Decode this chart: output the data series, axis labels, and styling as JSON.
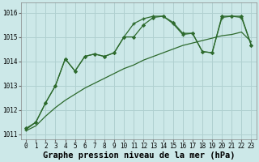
{
  "background_color": "#cce8e8",
  "grid_color": "#b0d0d0",
  "line_color": "#2d6a2d",
  "xlabel": "Graphe pression niveau de la mer (hPa)",
  "xlabel_fontsize": 7.5,
  "tick_fontsize": 5.5,
  "xlim": [
    -0.5,
    23.5
  ],
  "ylim": [
    1010.8,
    1016.4
  ],
  "yticks": [
    1011,
    1012,
    1013,
    1014,
    1015,
    1016
  ],
  "xticks": [
    0,
    1,
    2,
    3,
    4,
    5,
    6,
    7,
    8,
    9,
    10,
    11,
    12,
    13,
    14,
    15,
    16,
    17,
    18,
    19,
    20,
    21,
    22,
    23
  ],
  "line1_x": [
    0,
    1,
    2,
    3,
    4,
    5,
    6,
    7,
    8,
    9,
    10,
    11,
    12,
    13,
    14,
    15,
    16,
    17,
    18,
    19,
    20,
    21,
    22,
    23
  ],
  "line1_y": [
    1011.15,
    1011.35,
    1011.75,
    1012.1,
    1012.4,
    1012.65,
    1012.9,
    1013.1,
    1013.3,
    1013.5,
    1013.7,
    1013.85,
    1014.05,
    1014.2,
    1014.35,
    1014.5,
    1014.65,
    1014.75,
    1014.85,
    1014.95,
    1015.05,
    1015.1,
    1015.2,
    1014.8
  ],
  "line2_x": [
    0,
    1,
    2,
    3,
    4,
    5,
    6,
    7,
    8,
    9,
    10,
    11,
    12,
    13,
    14,
    15,
    16,
    17,
    18,
    19,
    20,
    21,
    22,
    23
  ],
  "line2_y": [
    1011.2,
    1011.5,
    1012.3,
    1013.0,
    1014.1,
    1013.6,
    1014.2,
    1014.3,
    1014.2,
    1014.35,
    1015.0,
    1015.55,
    1015.75,
    1015.85,
    1015.85,
    1015.55,
    1015.1,
    1015.15,
    1014.4,
    1014.35,
    1015.8,
    1015.85,
    1015.8,
    1014.65
  ],
  "line3_x": [
    0,
    1,
    2,
    3,
    4,
    5,
    6,
    7,
    8,
    9,
    10,
    11,
    12,
    13,
    14,
    15,
    16,
    17,
    18,
    19,
    20,
    21,
    22,
    23
  ],
  "line3_y": [
    1011.25,
    1011.5,
    1012.3,
    1013.0,
    1014.1,
    1013.6,
    1014.2,
    1014.3,
    1014.2,
    1014.35,
    1015.0,
    1015.0,
    1015.5,
    1015.8,
    1015.85,
    1015.6,
    1015.15,
    1015.15,
    1014.4,
    1014.35,
    1015.85,
    1015.85,
    1015.85,
    1014.65
  ]
}
